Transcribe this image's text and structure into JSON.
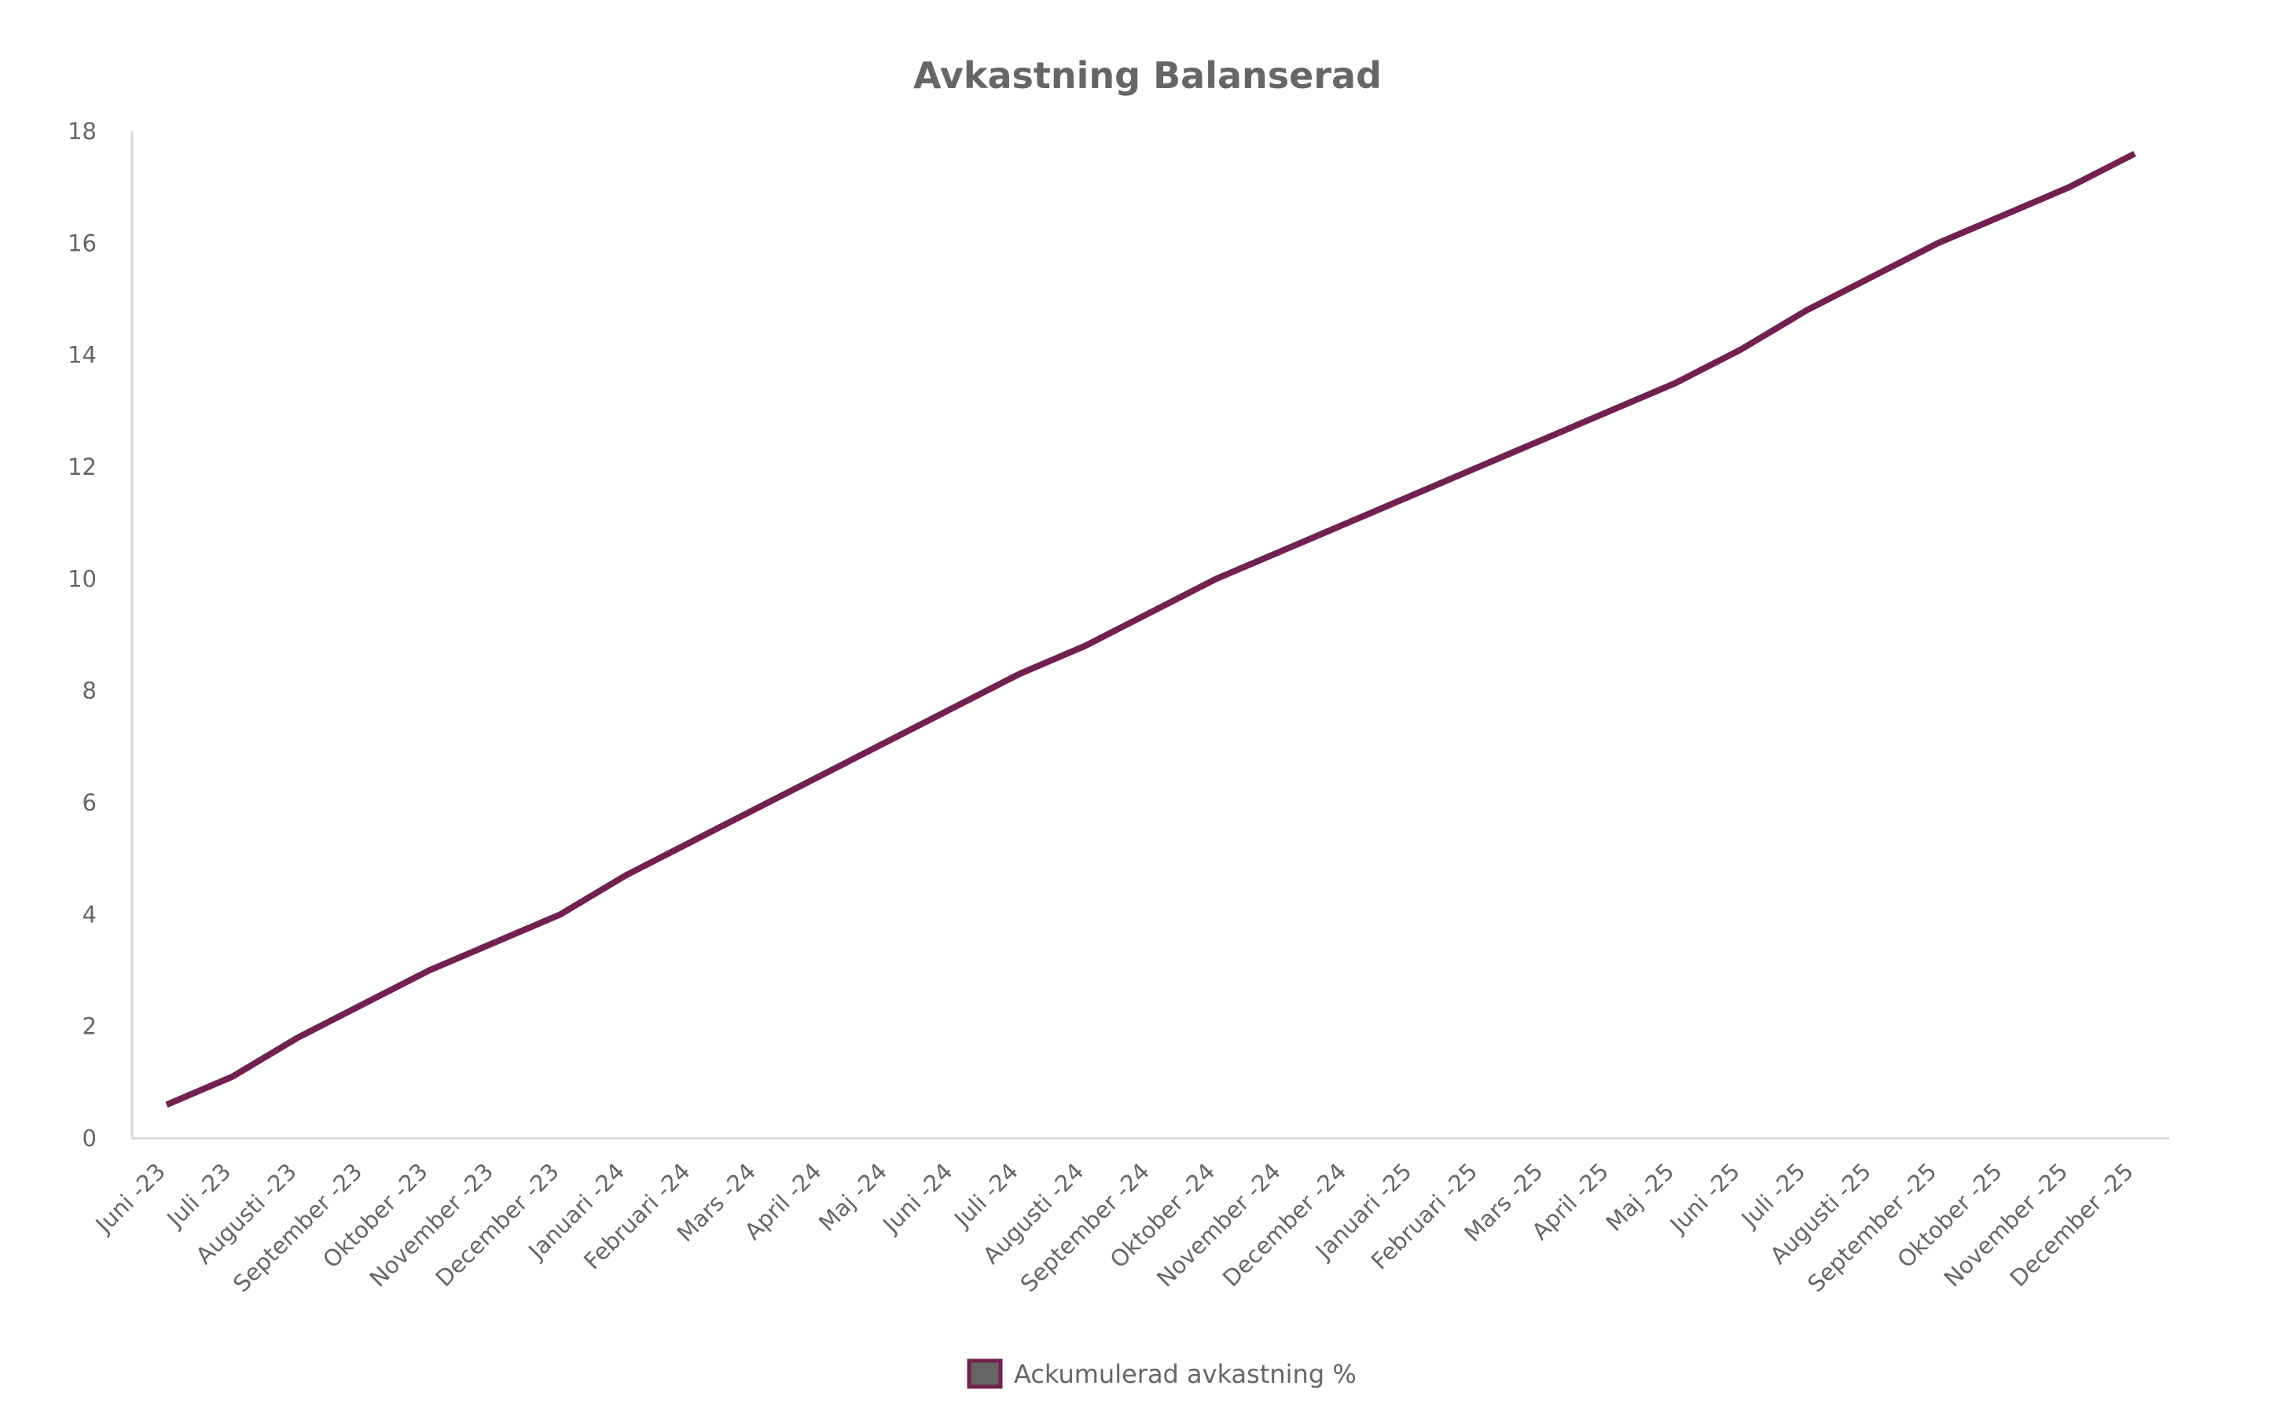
{
  "chart_data": {
    "type": "line",
    "title": "Avkastning Balanserad",
    "xlabel": "",
    "ylabel": "",
    "ylim": [
      0,
      18
    ],
    "yticks": [
      0,
      2,
      4,
      6,
      8,
      10,
      12,
      14,
      16,
      18
    ],
    "grid": false,
    "legend_position": "bottom",
    "categories": [
      "Juni -23",
      "Juli -23",
      "Augusti -23",
      "September -23",
      "Oktober -23",
      "November -23",
      "December -23",
      "Januari -24",
      "Februari -24",
      "Mars -24",
      "April -24",
      "Maj -24",
      "Juni -24",
      "Juli -24",
      "Augusti -24",
      "September -24",
      "Oktober -24",
      "November -24",
      "December -24",
      "Januari -25",
      "Februari -25",
      "Mars -25",
      "April -25",
      "Maj -25",
      "Juni -25",
      "Juli -25",
      "Augusti -25",
      "September -25",
      "Oktober -25",
      "November -25",
      "December -25"
    ],
    "series": [
      {
        "name": "Ackumulerad avkastning %",
        "color": "#722050",
        "values": [
          0.6,
          1.1,
          1.8,
          2.4,
          3.0,
          3.5,
          4.0,
          4.7,
          5.3,
          5.9,
          6.5,
          7.1,
          7.7,
          8.3,
          8.8,
          9.4,
          10.0,
          10.5,
          11.0,
          11.5,
          12.0,
          12.5,
          13.0,
          13.5,
          14.1,
          14.8,
          15.4,
          16.0,
          16.5,
          17.0,
          17.6
        ]
      }
    ],
    "legend_swatch_fill": "#666666",
    "axis_color": "#d9d9d9",
    "text_color": "#666666"
  }
}
